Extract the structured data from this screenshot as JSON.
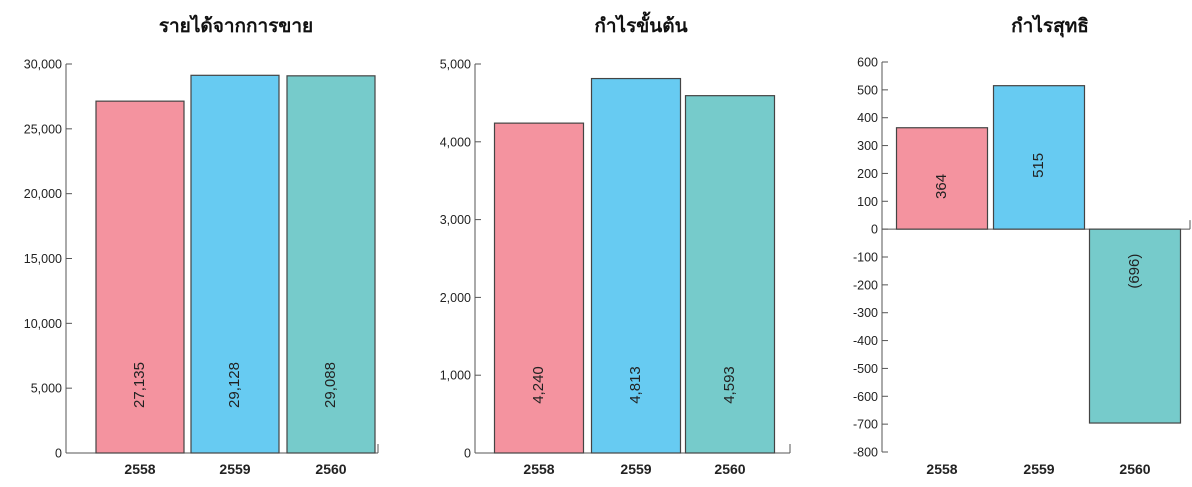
{
  "chart_data": [
    {
      "type": "bar",
      "title": "รายได้จากการขาย",
      "categories": [
        "2558",
        "2559",
        "2560"
      ],
      "values": [
        27135,
        29128,
        29088
      ],
      "value_labels": [
        "27,135",
        "29,128",
        "29,088"
      ],
      "ylim": [
        0,
        30000
      ],
      "yticks": [
        0,
        5000,
        10000,
        15000,
        20000,
        25000,
        30000
      ],
      "ytick_labels": [
        "0",
        "5,000",
        "10,000",
        "15,000",
        "20,000",
        "25,000",
        "30,000"
      ],
      "bar_colors": [
        "#f4939f",
        "#67cbf2",
        "#76cbcb"
      ],
      "grid": false
    },
    {
      "type": "bar",
      "title": "กำไรขั้นต้น",
      "categories": [
        "2558",
        "2559",
        "2560"
      ],
      "values": [
        4240,
        4813,
        4593
      ],
      "value_labels": [
        "4,240",
        "4,813",
        "4,593"
      ],
      "ylim": [
        0,
        5000
      ],
      "yticks": [
        0,
        1000,
        2000,
        3000,
        4000,
        5000
      ],
      "ytick_labels": [
        "0",
        "1,000",
        "2,000",
        "3,000",
        "4,000",
        "5,000"
      ],
      "bar_colors": [
        "#f4939f",
        "#67cbf2",
        "#76cbcb"
      ],
      "grid": false
    },
    {
      "type": "bar",
      "title": "กำไรสุทธิ",
      "categories": [
        "2558",
        "2559",
        "2560"
      ],
      "values": [
        364,
        515,
        -696
      ],
      "value_labels": [
        "364",
        "515",
        "(696)"
      ],
      "ylim": [
        -800,
        600
      ],
      "yticks": [
        -800,
        -700,
        -600,
        -500,
        -400,
        -300,
        -200,
        -100,
        0,
        100,
        200,
        300,
        400,
        500,
        600
      ],
      "ytick_labels": [
        "-800",
        "-700",
        "-600",
        "-500",
        "-400",
        "-300",
        "-200",
        "-100",
        "0",
        "100",
        "200",
        "300",
        "400",
        "500",
        "600"
      ],
      "bar_colors": [
        "#f4939f",
        "#67cbf2",
        "#76cbcb"
      ],
      "grid": false
    }
  ]
}
